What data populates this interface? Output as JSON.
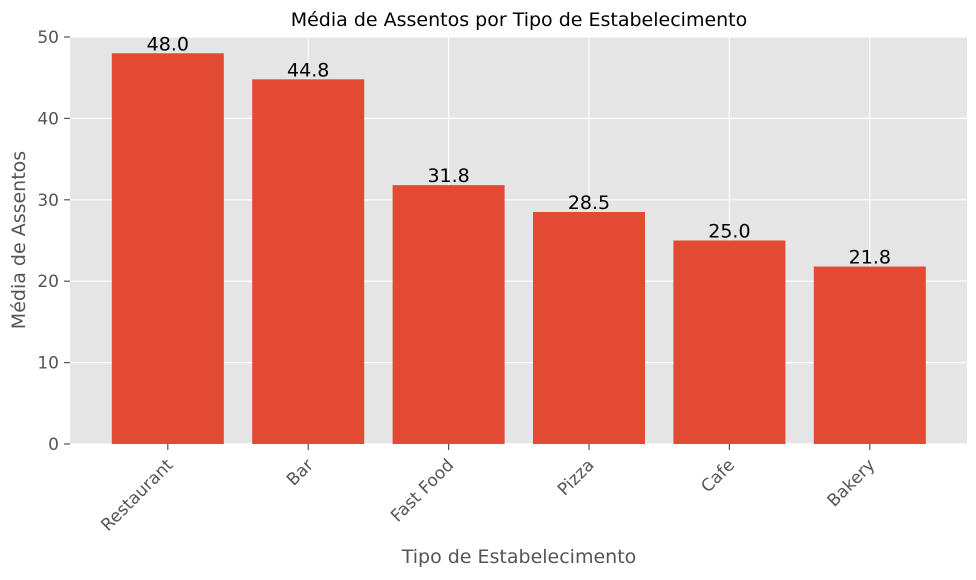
{
  "chart_data": {
    "type": "bar",
    "title": "Média de Assentos por Tipo de Estabelecimento",
    "xlabel": "Tipo de Estabelecimento",
    "ylabel": "Média de Assentos",
    "categories": [
      "Restaurant",
      "Bar",
      "Fast Food",
      "Pizza",
      "Cafe",
      "Bakery"
    ],
    "values": [
      48.0,
      44.8,
      31.8,
      28.5,
      25.0,
      21.8
    ],
    "value_labels": [
      "48.0",
      "44.8",
      "31.8",
      "28.5",
      "25.0",
      "21.8"
    ],
    "ylim": [
      0,
      50
    ],
    "yticks": [
      0,
      10,
      20,
      30,
      40,
      50
    ],
    "ytick_labels": [
      "0",
      "10",
      "20",
      "30",
      "40",
      "50"
    ],
    "grid": true,
    "colors": {
      "bar": "#e24a33",
      "plot_background": "#e5e5e5",
      "grid": "#ffffff",
      "tick_text": "#555555",
      "label_text": "#555555",
      "title_text": "#000000",
      "value_text": "#000000"
    }
  }
}
